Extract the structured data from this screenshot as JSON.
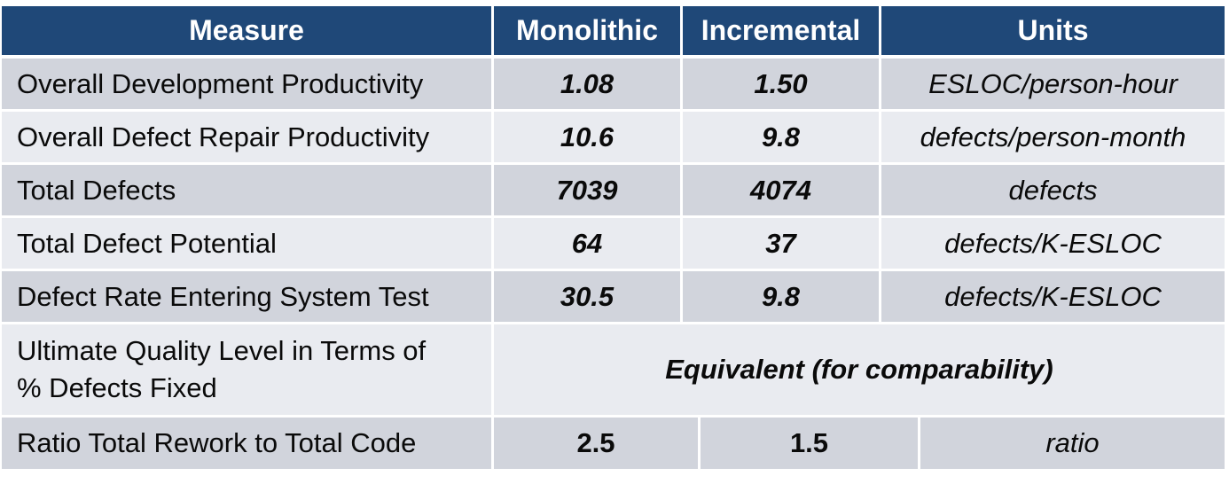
{
  "headers": [
    "Measure",
    "Monolithic",
    "Incremental",
    "Units"
  ],
  "rows": [
    {
      "measure": "Overall Development Productivity",
      "monolithic": "1.08",
      "incremental": "1.50",
      "units": "ESLOC/person-hour"
    },
    {
      "measure": "Overall Defect Repair Productivity",
      "monolithic": "10.6",
      "incremental": "9.8",
      "units": "defects/person-month"
    },
    {
      "measure": "Total Defects",
      "monolithic": "7039",
      "incremental": "4074",
      "units": "defects"
    },
    {
      "measure": "Total Defect Potential",
      "monolithic": "64",
      "incremental": "37",
      "units": "defects/K-ESLOC"
    },
    {
      "measure": "Defect Rate Entering System Test",
      "monolithic": "30.5",
      "incremental": "9.8",
      "units": "defects/K-ESLOC"
    }
  ],
  "quality_row": {
    "measure_line1": "Ultimate Quality Level in Terms of",
    "measure_line2": "% Defects Fixed",
    "merged_value": "Equivalent (for comparability)"
  },
  "rework_row": {
    "measure": "Ratio Total Rework to Total Code",
    "monolithic": "2.5",
    "incremental": "1.5",
    "units": "ratio"
  },
  "colors": {
    "header_bg": "#1f4878",
    "row_dark": "#d1d4dc",
    "row_light": "#e9ebf0",
    "grid": "#ffffff"
  }
}
